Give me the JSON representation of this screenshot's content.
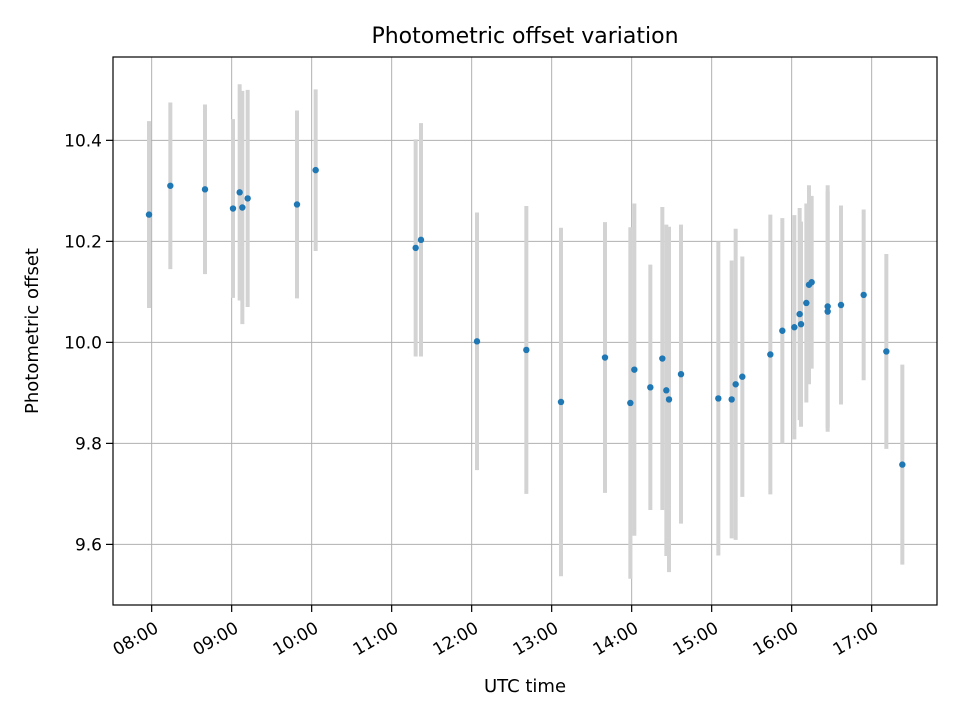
{
  "chart_data": {
    "type": "scatter",
    "title": "Photometric offset variation",
    "xlabel": "UTC time",
    "ylabel": "Photometric offset",
    "xlim": [
      "07:31",
      "17:49"
    ],
    "ylim": [
      9.48,
      10.565
    ],
    "grid": true,
    "x_ticks": [
      "08:00",
      "09:00",
      "10:00",
      "11:00",
      "12:00",
      "13:00",
      "14:00",
      "15:00",
      "16:00",
      "17:00"
    ],
    "y_ticks": [
      "9.6",
      "9.8",
      "10.0",
      "10.2",
      "10.4"
    ],
    "point_color": "#1f77b4",
    "errorbar_color": "#d3d3d3",
    "points": [
      {
        "time": "07:58",
        "value": 10.253,
        "low": 10.068,
        "high": 10.438
      },
      {
        "time": "08:14",
        "value": 10.31,
        "low": 10.145,
        "high": 10.475
      },
      {
        "time": "08:40",
        "value": 10.303,
        "low": 10.135,
        "high": 10.471
      },
      {
        "time": "09:01",
        "value": 10.265,
        "low": 10.088,
        "high": 10.442
      },
      {
        "time": "09:06",
        "value": 10.297,
        "low": 10.083,
        "high": 10.511
      },
      {
        "time": "09:08",
        "value": 10.267,
        "low": 10.036,
        "high": 10.498
      },
      {
        "time": "09:12",
        "value": 10.285,
        "low": 10.07,
        "high": 10.5
      },
      {
        "time": "09:49",
        "value": 10.273,
        "low": 10.087,
        "high": 10.459
      },
      {
        "time": "10:03",
        "value": 10.341,
        "low": 10.181,
        "high": 10.501
      },
      {
        "time": "11:18",
        "value": 10.187,
        "low": 9.972,
        "high": 10.402
      },
      {
        "time": "11:22",
        "value": 10.203,
        "low": 9.972,
        "high": 10.434
      },
      {
        "time": "12:04",
        "value": 10.002,
        "low": 9.747,
        "high": 10.257
      },
      {
        "time": "12:41",
        "value": 9.985,
        "low": 9.7,
        "high": 10.27
      },
      {
        "time": "13:07",
        "value": 9.882,
        "low": 9.537,
        "high": 10.227
      },
      {
        "time": "13:40",
        "value": 9.97,
        "low": 9.702,
        "high": 10.238
      },
      {
        "time": "13:59",
        "value": 9.88,
        "low": 9.532,
        "high": 10.228
      },
      {
        "time": "14:02",
        "value": 9.946,
        "low": 9.617,
        "high": 10.275
      },
      {
        "time": "14:14",
        "value": 9.911,
        "low": 9.668,
        "high": 10.154
      },
      {
        "time": "14:23",
        "value": 9.968,
        "low": 9.668,
        "high": 10.268
      },
      {
        "time": "14:26",
        "value": 9.905,
        "low": 9.577,
        "high": 10.233
      },
      {
        "time": "14:28",
        "value": 9.887,
        "low": 9.545,
        "high": 10.229
      },
      {
        "time": "14:37",
        "value": 9.937,
        "low": 9.641,
        "high": 10.233
      },
      {
        "time": "15:05",
        "value": 9.889,
        "low": 9.578,
        "high": 10.2
      },
      {
        "time": "15:15",
        "value": 9.887,
        "low": 9.612,
        "high": 10.162
      },
      {
        "time": "15:18",
        "value": 9.917,
        "low": 9.609,
        "high": 10.225
      },
      {
        "time": "15:23",
        "value": 9.932,
        "low": 9.694,
        "high": 10.17
      },
      {
        "time": "15:44",
        "value": 9.976,
        "low": 9.699,
        "high": 10.253
      },
      {
        "time": "15:53",
        "value": 10.023,
        "low": 9.8,
        "high": 10.246
      },
      {
        "time": "16:02",
        "value": 10.03,
        "low": 9.808,
        "high": 10.252
      },
      {
        "time": "16:06",
        "value": 10.056,
        "low": 9.846,
        "high": 10.266
      },
      {
        "time": "16:07",
        "value": 10.036,
        "low": 9.833,
        "high": 10.239
      },
      {
        "time": "16:11",
        "value": 10.078,
        "low": 9.881,
        "high": 10.275
      },
      {
        "time": "16:13",
        "value": 10.114,
        "low": 9.917,
        "high": 10.311
      },
      {
        "time": "16:15",
        "value": 10.119,
        "low": 9.948,
        "high": 10.29
      },
      {
        "time": "16:27",
        "value": 10.071,
        "low": 9.831,
        "high": 10.311
      },
      {
        "time": "16:27",
        "value": 10.061,
        "low": 9.823,
        "high": 10.299
      },
      {
        "time": "16:37",
        "value": 10.074,
        "low": 9.877,
        "high": 10.271
      },
      {
        "time": "16:54",
        "value": 10.094,
        "low": 9.925,
        "high": 10.263
      },
      {
        "time": "17:11",
        "value": 9.982,
        "low": 9.789,
        "high": 10.175
      },
      {
        "time": "17:23",
        "value": 9.758,
        "low": 9.56,
        "high": 9.956
      }
    ]
  }
}
